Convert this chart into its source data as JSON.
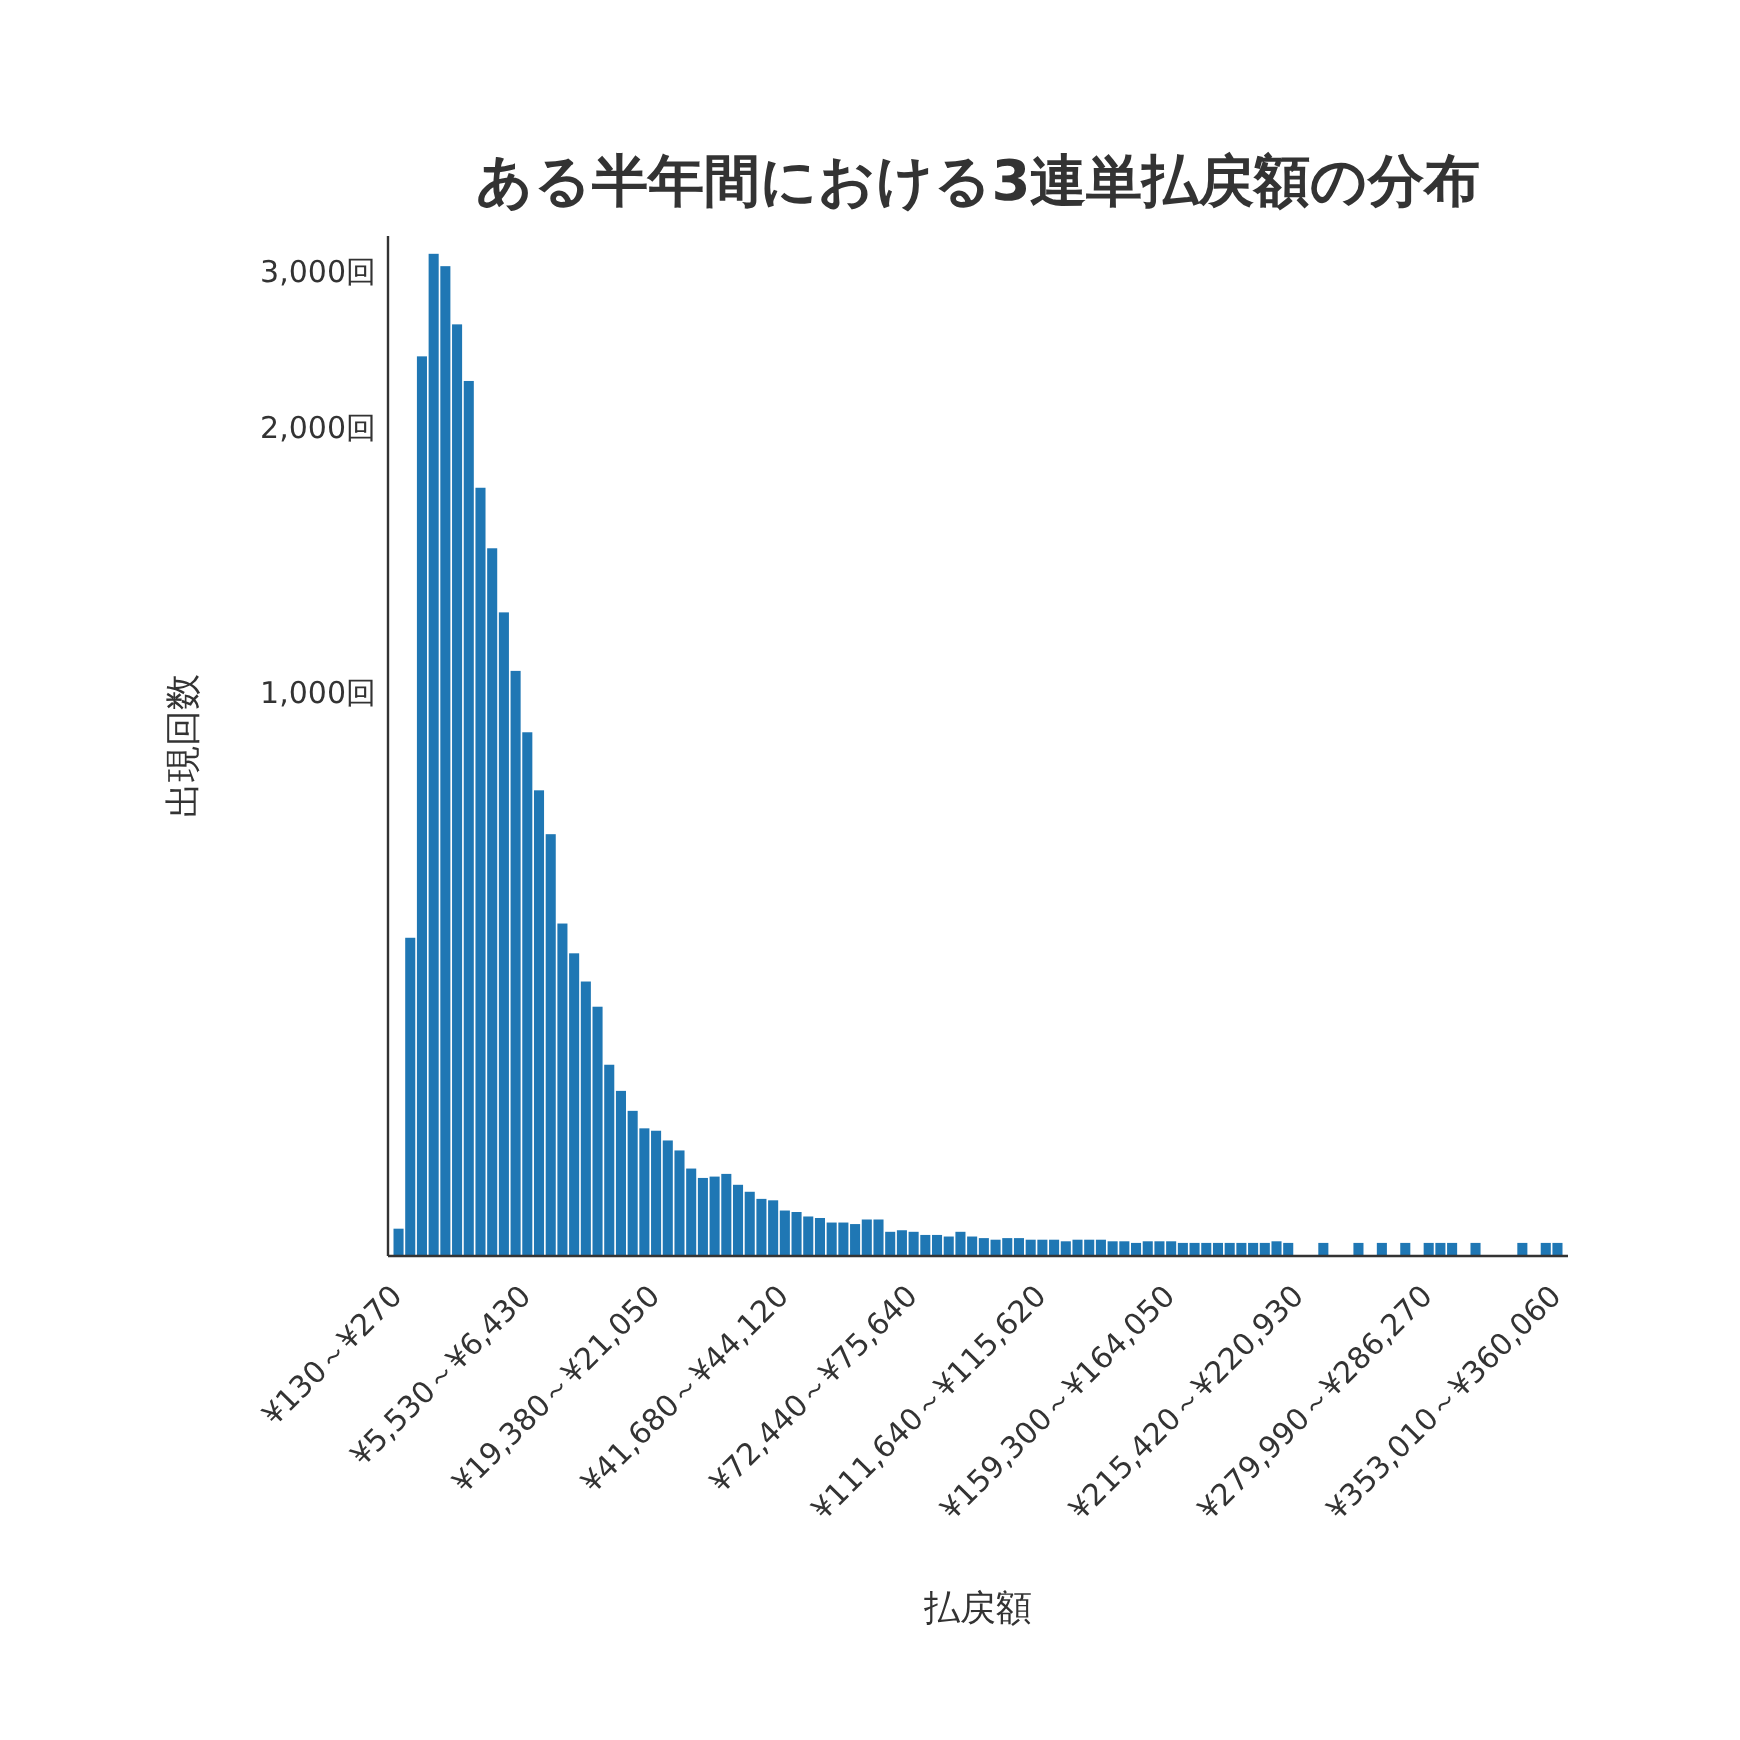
{
  "chart_data": {
    "type": "bar",
    "title": "ある半年間における3連単払戻額の分布",
    "xlabel": "払戻額",
    "ylabel": "出現回数",
    "categories": [
      "¥130～¥270",
      null,
      null,
      null,
      null,
      null,
      null,
      null,
      null,
      null,
      null,
      "¥5,530～¥6,430",
      null,
      null,
      null,
      null,
      null,
      null,
      null,
      null,
      null,
      null,
      "¥19,380～¥21,050",
      null,
      null,
      null,
      null,
      null,
      null,
      null,
      null,
      null,
      null,
      "¥41,680～¥44,120",
      null,
      null,
      null,
      null,
      null,
      null,
      null,
      null,
      null,
      null,
      "¥72,440～¥75,640",
      null,
      null,
      null,
      null,
      null,
      null,
      null,
      null,
      null,
      null,
      "¥111,640～¥115,620",
      null,
      null,
      null,
      null,
      null,
      null,
      null,
      null,
      null,
      null,
      "¥159,300～¥164,050",
      null,
      null,
      null,
      null,
      null,
      null,
      null,
      null,
      null,
      null,
      "¥215,420～¥220,930",
      null,
      null,
      null,
      null,
      null,
      null,
      null,
      null,
      null,
      null,
      "¥279,990～¥286,270",
      null,
      null,
      null,
      null,
      null,
      null,
      null,
      null,
      null,
      null,
      "¥353,010～¥360,060"
    ],
    "values": [
      247,
      528,
      2410,
      3150,
      3050,
      2620,
      2260,
      1710,
      1460,
      1235,
      1060,
      903,
      776,
      692,
      548,
      507,
      471,
      441,
      379,
      354,
      336,
      321,
      319,
      311,
      303,
      289,
      282,
      283,
      285,
      277,
      272,
      267,
      266,
      259,
      258,
      255,
      254,
      251,
      251,
      250,
      253,
      253,
      245,
      246,
      245,
      243,
      243,
      242,
      245,
      242,
      241,
      240,
      241,
      241,
      240,
      240,
      240,
      239,
      240,
      240,
      240,
      239,
      239,
      238,
      239,
      239,
      239,
      238,
      238,
      238,
      238,
      238,
      238,
      238,
      238,
      239,
      238,
      null,
      null,
      238,
      null,
      null,
      238,
      null,
      238,
      null,
      238,
      null,
      238,
      238,
      238,
      null,
      238,
      null,
      null,
      null,
      238,
      null,
      238,
      238
    ],
    "color": "#1f77b4",
    "log": true,
    "ylim": [
      230,
      3300
    ],
    "yticks": [
      {
        "value": 1000,
        "label": "1,000回"
      },
      {
        "value": 2000,
        "label": "2,000回"
      },
      {
        "value": 3000,
        "label": "3,000回"
      }
    ]
  }
}
